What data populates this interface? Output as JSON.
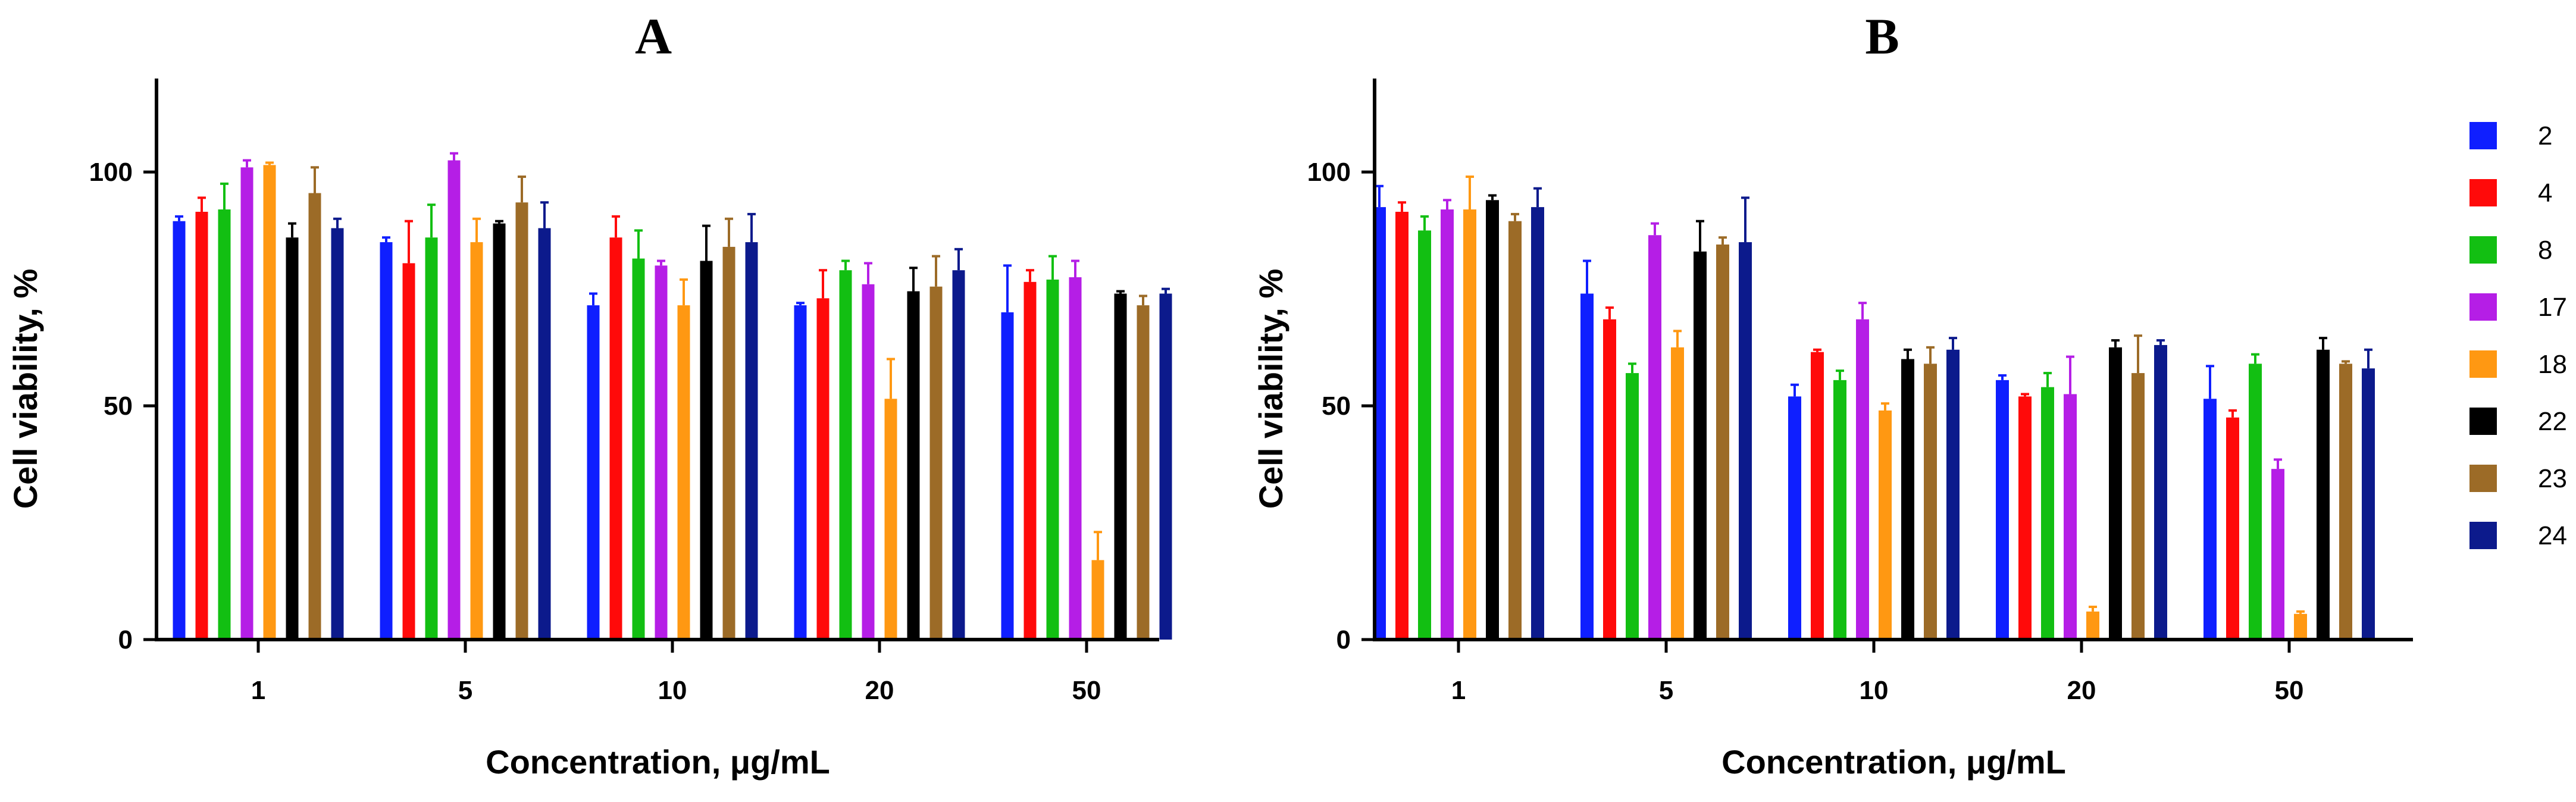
{
  "chart_data": [
    {
      "type": "bar",
      "title": "A",
      "xlabel": "Concentration, μg/mL",
      "ylabel": "Cell viability,  %",
      "categories": [
        "1",
        "5",
        "10",
        "20",
        "50"
      ],
      "ylim": [
        0,
        120
      ],
      "yticks": [
        "0",
        "50",
        "100"
      ],
      "grid": false,
      "legend": "none",
      "series": [
        {
          "name": "2",
          "values": [
            89.5,
            85,
            71.5,
            71.5,
            70
          ],
          "errors": [
            1,
            1,
            2.5,
            0.5,
            10
          ]
        },
        {
          "name": "4",
          "values": [
            91.5,
            80.5,
            86,
            73,
            76.5
          ],
          "errors": [
            3,
            9,
            4.5,
            6,
            2.5
          ]
        },
        {
          "name": "8",
          "values": [
            92,
            86,
            81.5,
            79,
            77
          ],
          "errors": [
            5.5,
            7,
            6,
            2,
            5
          ]
        },
        {
          "name": "17",
          "values": [
            101,
            102.5,
            80,
            76,
            77.5
          ],
          "errors": [
            1.5,
            1.5,
            1,
            4.5,
            3.5
          ]
        },
        {
          "name": "18",
          "values": [
            101.5,
            85,
            71.5,
            51.5,
            17
          ],
          "errors": [
            0.5,
            5,
            5.5,
            8.5,
            6
          ]
        },
        {
          "name": "22",
          "values": [
            86,
            89,
            81,
            74.5,
            74
          ],
          "errors": [
            3,
            0.5,
            7.5,
            5,
            0.5
          ]
        },
        {
          "name": "23",
          "values": [
            95.5,
            93.5,
            84,
            75.5,
            71.5
          ],
          "errors": [
            5.5,
            5.5,
            6,
            6.5,
            2
          ]
        },
        {
          "name": "24",
          "values": [
            88,
            88,
            85,
            79,
            74
          ],
          "errors": [
            2,
            5.5,
            6,
            4.5,
            1
          ]
        }
      ]
    },
    {
      "type": "bar",
      "title": "B",
      "xlabel": "Concentration, μg/mL",
      "ylabel": "Cell viability,  %",
      "categories": [
        "1",
        "5",
        "10",
        "20",
        "50"
      ],
      "ylim": [
        0,
        120
      ],
      "yticks": [
        "0",
        "50",
        "100"
      ],
      "grid": false,
      "legend": "right",
      "series": [
        {
          "name": "2",
          "values": [
            92.5,
            74,
            52,
            55.5,
            51.5
          ],
          "errors": [
            4.5,
            7,
            2.5,
            1,
            7
          ]
        },
        {
          "name": "4",
          "values": [
            91.5,
            68.5,
            61.5,
            52,
            47.5
          ],
          "errors": [
            2,
            2.5,
            0.5,
            0.5,
            1.5
          ]
        },
        {
          "name": "8",
          "values": [
            87.5,
            57,
            55.5,
            54,
            59
          ],
          "errors": [
            3,
            2,
            2,
            3,
            2
          ]
        },
        {
          "name": "17",
          "values": [
            92,
            86.5,
            68.5,
            52.5,
            36.5
          ],
          "errors": [
            2,
            2.5,
            3.5,
            8,
            2
          ]
        },
        {
          "name": "18",
          "values": [
            92,
            62.5,
            49,
            6,
            5.5
          ],
          "errors": [
            7,
            3.5,
            1.5,
            1,
            0.5
          ]
        },
        {
          "name": "22",
          "values": [
            94,
            83,
            60,
            62.5,
            62
          ],
          "errors": [
            1,
            6.5,
            2,
            1.5,
            2.5
          ]
        },
        {
          "name": "23",
          "values": [
            89.5,
            84.5,
            59,
            57,
            59
          ],
          "errors": [
            1.5,
            1.5,
            3.5,
            8,
            0.5
          ]
        },
        {
          "name": "24",
          "values": [
            92.5,
            85,
            62,
            63,
            58
          ],
          "errors": [
            4,
            9.5,
            2.5,
            1,
            4
          ]
        }
      ]
    }
  ],
  "legend": {
    "items": [
      {
        "label": "2",
        "color": "#0f1fff"
      },
      {
        "label": "4",
        "color": "#ff0a0a"
      },
      {
        "label": "8",
        "color": "#12bf12"
      },
      {
        "label": "17",
        "color": "#b51ee6"
      },
      {
        "label": "18",
        "color": "#ff9812"
      },
      {
        "label": "22",
        "color": "#000000"
      },
      {
        "label": "23",
        "color": "#9c6b27"
      },
      {
        "label": "24",
        "color": "#0c1a8c"
      }
    ]
  }
}
